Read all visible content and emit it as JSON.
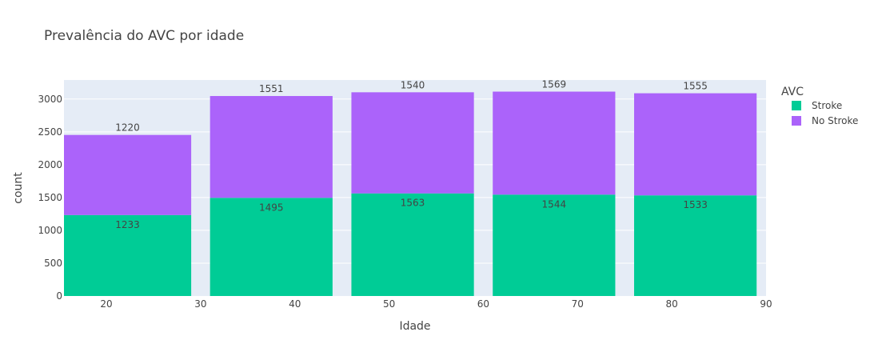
{
  "chart_data": {
    "type": "bar",
    "barmode": "stack",
    "title": "Prevalência do AVC por idade",
    "xlabel": "Idade",
    "ylabel": "count",
    "xlim": [
      15.5,
      90
    ],
    "ylim": [
      0,
      3290
    ],
    "x_ticks": [
      20,
      30,
      40,
      50,
      60,
      70,
      80,
      90
    ],
    "y_ticks": [
      0,
      500,
      1000,
      1500,
      2000,
      2500,
      3000
    ],
    "bins": [
      [
        15.5,
        29
      ],
      [
        31,
        44
      ],
      [
        46,
        59
      ],
      [
        61,
        74
      ],
      [
        76,
        89
      ]
    ],
    "legend_title": "AVC",
    "legend_position": "right",
    "grid": true,
    "plot_bg": "#e5ecf6",
    "series": [
      {
        "name": "Stroke",
        "color": "#00cc96",
        "values": [
          1233,
          1495,
          1563,
          1544,
          1533
        ]
      },
      {
        "name": "No Stroke",
        "color": "#ab63fa",
        "values": [
          1220,
          1551,
          1540,
          1569,
          1555
        ]
      }
    ]
  }
}
